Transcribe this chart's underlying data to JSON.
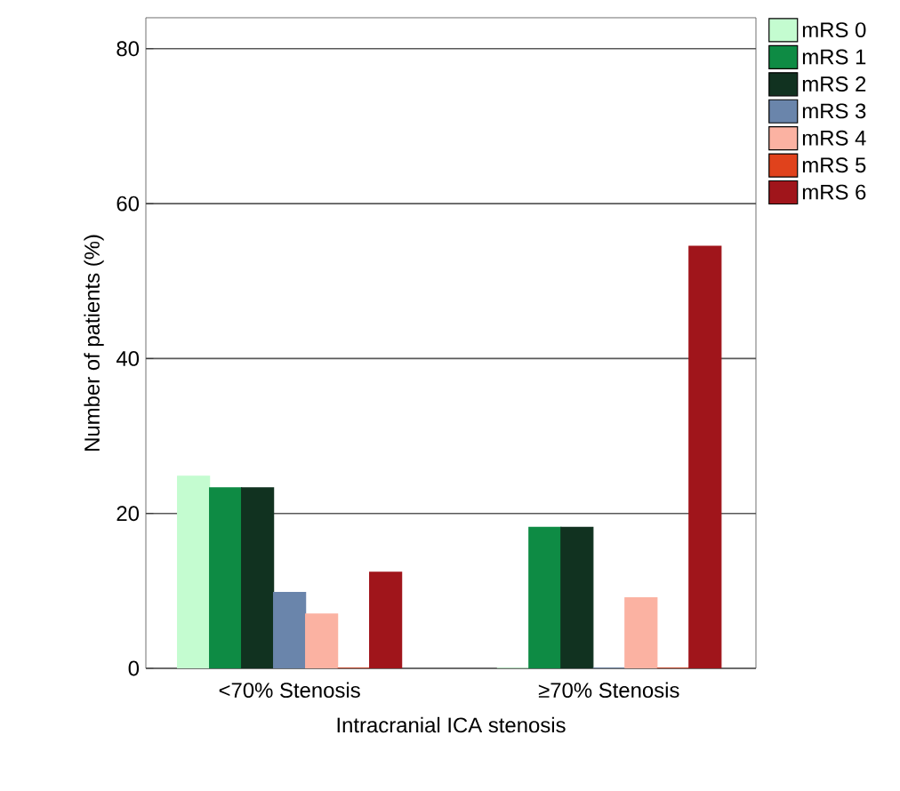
{
  "chart_data": {
    "type": "bar",
    "xlabel": "Intracranial ICA stenosis",
    "ylabel": "Number of patients (%)",
    "categories": [
      "<70% Stenosis",
      "≥70% Stenosis"
    ],
    "series": [
      {
        "name": "mRS 0",
        "color": "#c4fcd0",
        "values": [
          24.8,
          0
        ]
      },
      {
        "name": "mRS 1",
        "color": "#0e8b44",
        "values": [
          23.3,
          18.2
        ]
      },
      {
        "name": "mRS 2",
        "color": "#113220",
        "values": [
          23.3,
          18.2
        ]
      },
      {
        "name": "mRS 3",
        "color": "#6a85ab",
        "values": [
          9.8,
          0
        ]
      },
      {
        "name": "mRS 4",
        "color": "#fbb2a2",
        "values": [
          7.0,
          9.1
        ]
      },
      {
        "name": "mRS 5",
        "color": "#e0421c",
        "values": [
          0,
          0
        ]
      },
      {
        "name": "mRS 6",
        "color": "#a0151b",
        "values": [
          12.4,
          54.5
        ]
      }
    ],
    "ylim": [
      0,
      84
    ],
    "yticks": [
      0,
      20,
      40,
      60,
      80
    ],
    "grid": "y",
    "legend": "top right"
  }
}
